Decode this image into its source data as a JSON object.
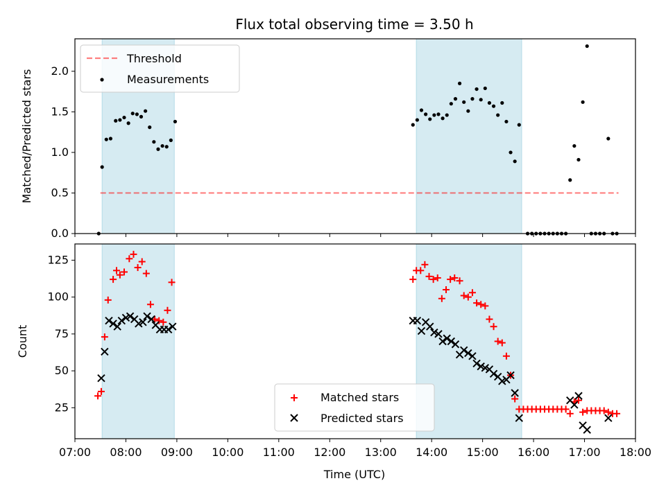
{
  "title": "Flux total observing time = 3.50 h",
  "xlabel": "Time (UTC)",
  "colors": {
    "shade": "#add8e6",
    "threshold": "#ff0000",
    "matched": "#ff0000",
    "predicted": "#000000",
    "measurements": "#000000"
  },
  "chart_data": [
    {
      "type": "scatter",
      "panel": "top",
      "ylabel": "Matched/Predicted stars",
      "xlim": [
        "07:00",
        "18:00"
      ],
      "ylim": [
        0,
        2.4
      ],
      "yticks": [
        0.0,
        0.5,
        1.0,
        1.5,
        2.0
      ],
      "xticks": [
        "07:00",
        "08:00",
        "09:00",
        "10:00",
        "11:00",
        "12:00",
        "13:00",
        "14:00",
        "15:00",
        "16:00",
        "17:00",
        "18:00"
      ],
      "legend_position": "top-left",
      "legend": [
        "Threshold",
        "Measurements"
      ],
      "shaded_intervals": [
        [
          "07:32",
          "08:57"
        ],
        [
          "13:42",
          "15:46"
        ]
      ],
      "threshold": {
        "name": "Threshold",
        "value": 0.5,
        "x_range": [
          "07:30",
          "17:40"
        ],
        "style": "dashed"
      },
      "series": [
        {
          "name": "Measurements",
          "points": [
            [
              "07:28",
              0.0
            ],
            [
              "07:32",
              0.82
            ],
            [
              "07:37",
              1.16
            ],
            [
              "07:42",
              1.17
            ],
            [
              "07:48",
              1.39
            ],
            [
              "07:53",
              1.4
            ],
            [
              "07:58",
              1.43
            ],
            [
              "08:03",
              1.36
            ],
            [
              "08:08",
              1.48
            ],
            [
              "08:13",
              1.47
            ],
            [
              "08:18",
              1.44
            ],
            [
              "08:23",
              1.51
            ],
            [
              "08:28",
              1.31
            ],
            [
              "08:33",
              1.13
            ],
            [
              "08:38",
              1.04
            ],
            [
              "08:43",
              1.08
            ],
            [
              "08:48",
              1.07
            ],
            [
              "08:53",
              1.15
            ],
            [
              "08:58",
              1.38
            ],
            [
              "13:38",
              1.34
            ],
            [
              "13:43",
              1.4
            ],
            [
              "13:48",
              1.52
            ],
            [
              "13:53",
              1.47
            ],
            [
              "13:58",
              1.41
            ],
            [
              "14:03",
              1.46
            ],
            [
              "14:08",
              1.47
            ],
            [
              "14:13",
              1.42
            ],
            [
              "14:18",
              1.46
            ],
            [
              "14:23",
              1.6
            ],
            [
              "14:28",
              1.66
            ],
            [
              "14:33",
              1.85
            ],
            [
              "14:38",
              1.62
            ],
            [
              "14:43",
              1.51
            ],
            [
              "14:48",
              1.66
            ],
            [
              "14:53",
              1.78
            ],
            [
              "14:58",
              1.65
            ],
            [
              "15:03",
              1.79
            ],
            [
              "15:08",
              1.61
            ],
            [
              "15:13",
              1.57
            ],
            [
              "15:18",
              1.46
            ],
            [
              "15:23",
              1.61
            ],
            [
              "15:28",
              1.38
            ],
            [
              "15:33",
              1.0
            ],
            [
              "15:38",
              0.89
            ],
            [
              "15:43",
              1.34
            ],
            [
              "15:53",
              0.0
            ],
            [
              "15:58",
              0.0
            ],
            [
              "16:03",
              0.0
            ],
            [
              "16:08",
              0.0
            ],
            [
              "16:13",
              0.0
            ],
            [
              "16:18",
              0.0
            ],
            [
              "16:23",
              0.0
            ],
            [
              "16:28",
              0.0
            ],
            [
              "16:33",
              0.0
            ],
            [
              "16:38",
              0.0
            ],
            [
              "16:43",
              0.66
            ],
            [
              "16:48",
              1.08
            ],
            [
              "16:53",
              0.91
            ],
            [
              "16:58",
              1.62
            ],
            [
              "17:03",
              2.31
            ],
            [
              "17:08",
              0.0
            ],
            [
              "17:13",
              0.0
            ],
            [
              "17:18",
              0.0
            ],
            [
              "17:23",
              0.0
            ],
            [
              "17:28",
              1.17
            ],
            [
              "17:33",
              0.0
            ],
            [
              "17:38",
              0.0
            ]
          ]
        }
      ]
    },
    {
      "type": "scatter",
      "panel": "bottom",
      "ylabel": "Count",
      "xlim": [
        "07:00",
        "18:00"
      ],
      "ylim": [
        4,
        136
      ],
      "yticks": [
        25,
        50,
        75,
        100,
        125
      ],
      "xticks": [
        "07:00",
        "08:00",
        "09:00",
        "10:00",
        "11:00",
        "12:00",
        "13:00",
        "14:00",
        "15:00",
        "16:00",
        "17:00",
        "18:00"
      ],
      "legend_position": "bottom-center",
      "legend": [
        "Matched stars",
        "Predicted stars"
      ],
      "shaded_intervals": [
        [
          "07:32",
          "08:57"
        ],
        [
          "13:42",
          "15:46"
        ]
      ],
      "series": [
        {
          "name": "Matched stars",
          "marker": "+",
          "points": [
            [
              "07:27",
              33
            ],
            [
              "07:31",
              36
            ],
            [
              "07:35",
              73
            ],
            [
              "07:39",
              98
            ],
            [
              "07:45",
              112
            ],
            [
              "07:49",
              118
            ],
            [
              "07:53",
              115
            ],
            [
              "07:58",
              117
            ],
            [
              "08:04",
              126
            ],
            [
              "08:09",
              129
            ],
            [
              "08:14",
              120
            ],
            [
              "08:19",
              124
            ],
            [
              "08:24",
              116
            ],
            [
              "08:29",
              95
            ],
            [
              "08:34",
              85
            ],
            [
              "08:39",
              84
            ],
            [
              "08:44",
              83
            ],
            [
              "08:49",
              91
            ],
            [
              "08:54",
              110
            ],
            [
              "13:38",
              112
            ],
            [
              "13:42",
              118
            ],
            [
              "13:47",
              118
            ],
            [
              "13:52",
              122
            ],
            [
              "13:57",
              114
            ],
            [
              "14:02",
              112
            ],
            [
              "14:07",
              113
            ],
            [
              "14:12",
              99
            ],
            [
              "14:17",
              105
            ],
            [
              "14:22",
              112
            ],
            [
              "14:27",
              113
            ],
            [
              "14:33",
              111
            ],
            [
              "14:38",
              101
            ],
            [
              "14:43",
              100
            ],
            [
              "14:48",
              103
            ],
            [
              "14:53",
              96
            ],
            [
              "14:58",
              95
            ],
            [
              "15:03",
              94
            ],
            [
              "15:08",
              85
            ],
            [
              "15:13",
              80
            ],
            [
              "15:18",
              70
            ],
            [
              "15:23",
              69
            ],
            [
              "15:28",
              60
            ],
            [
              "15:33",
              47
            ],
            [
              "15:38",
              31
            ],
            [
              "15:43",
              24
            ],
            [
              "15:48",
              24
            ],
            [
              "15:53",
              24
            ],
            [
              "15:58",
              24
            ],
            [
              "16:03",
              24
            ],
            [
              "16:08",
              24
            ],
            [
              "16:13",
              24
            ],
            [
              "16:18",
              24
            ],
            [
              "16:23",
              24
            ],
            [
              "16:28",
              24
            ],
            [
              "16:33",
              24
            ],
            [
              "16:38",
              24
            ],
            [
              "16:43",
              21
            ],
            [
              "16:48",
              29
            ],
            [
              "16:53",
              30
            ],
            [
              "16:58",
              22
            ],
            [
              "17:03",
              23
            ],
            [
              "17:08",
              23
            ],
            [
              "17:13",
              23
            ],
            [
              "17:18",
              23
            ],
            [
              "17:23",
              23
            ],
            [
              "17:28",
              22
            ],
            [
              "17:33",
              21
            ],
            [
              "17:38",
              21
            ]
          ]
        },
        {
          "name": "Predicted stars",
          "marker": "x",
          "points": [
            [
              "07:31",
              45
            ],
            [
              "07:35",
              63
            ],
            [
              "07:40",
              84
            ],
            [
              "07:45",
              82
            ],
            [
              "07:50",
              80
            ],
            [
              "07:55",
              84
            ],
            [
              "08:00",
              86
            ],
            [
              "08:05",
              87
            ],
            [
              "08:10",
              85
            ],
            [
              "08:15",
              82
            ],
            [
              "08:20",
              83
            ],
            [
              "08:25",
              87
            ],
            [
              "08:30",
              85
            ],
            [
              "08:35",
              81
            ],
            [
              "08:40",
              78
            ],
            [
              "08:45",
              78
            ],
            [
              "08:50",
              78
            ],
            [
              "08:55",
              80
            ],
            [
              "13:38",
              84
            ],
            [
              "13:43",
              84
            ],
            [
              "13:48",
              77
            ],
            [
              "13:53",
              83
            ],
            [
              "13:58",
              80
            ],
            [
              "14:03",
              76
            ],
            [
              "14:08",
              75
            ],
            [
              "14:13",
              70
            ],
            [
              "14:18",
              72
            ],
            [
              "14:23",
              70
            ],
            [
              "14:28",
              68
            ],
            [
              "14:33",
              61
            ],
            [
              "14:38",
              64
            ],
            [
              "14:43",
              62
            ],
            [
              "14:48",
              60
            ],
            [
              "14:53",
              55
            ],
            [
              "14:58",
              53
            ],
            [
              "15:03",
              52
            ],
            [
              "15:08",
              51
            ],
            [
              "15:13",
              48
            ],
            [
              "15:18",
              46
            ],
            [
              "15:23",
              43
            ],
            [
              "15:28",
              44
            ],
            [
              "15:33",
              47
            ],
            [
              "15:38",
              35
            ],
            [
              "15:43",
              18
            ],
            [
              "16:43",
              30
            ],
            [
              "16:48",
              27
            ],
            [
              "16:53",
              33
            ],
            [
              "16:58",
              13
            ],
            [
              "17:03",
              10
            ],
            [
              "17:28",
              18
            ]
          ]
        }
      ]
    }
  ]
}
